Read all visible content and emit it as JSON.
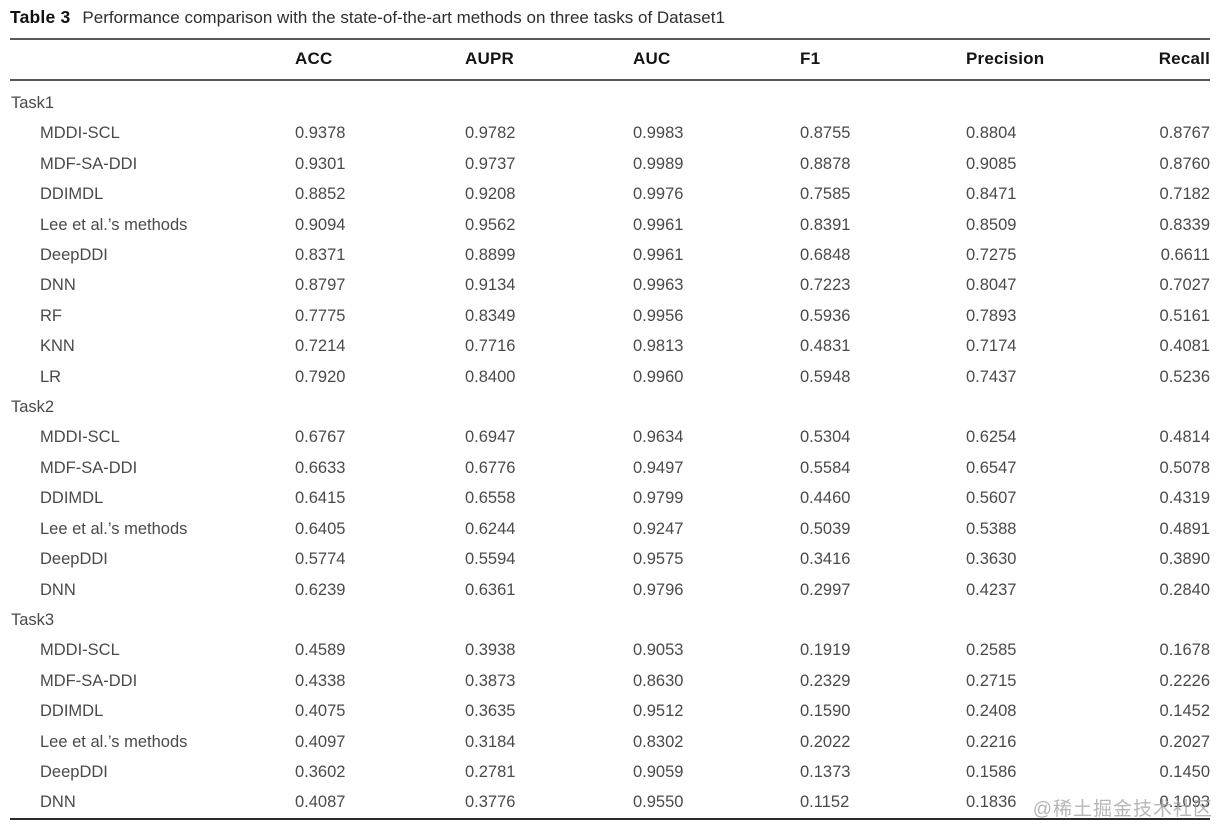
{
  "title": {
    "label": "Table 3",
    "text": "Performance comparison with the state-of-the-art methods on three tasks of Dataset1"
  },
  "watermark": "@稀土掘金技术社区",
  "colors": {
    "rule_top": "#58585a",
    "rule_bottom": "#2b2b2d",
    "header_text": "#141414",
    "body_text": "#4a4a4c",
    "watermark_text": "#a4a4a6"
  },
  "table": {
    "columns": [
      "",
      "ACC",
      "AUPR",
      "AUC",
      "F1",
      "Precision",
      "Recall"
    ],
    "sections": [
      {
        "label": "Task1",
        "rows": [
          {
            "method": "MDDI-SCL",
            "values": [
              "0.9378",
              "0.9782",
              "0.9983",
              "0.8755",
              "0.8804",
              "0.8767"
            ]
          },
          {
            "method": "MDF-SA-DDI",
            "values": [
              "0.9301",
              "0.9737",
              "0.9989",
              "0.8878",
              "0.9085",
              "0.8760"
            ]
          },
          {
            "method": "DDIMDL",
            "values": [
              "0.8852",
              "0.9208",
              "0.9976",
              "0.7585",
              "0.8471",
              "0.7182"
            ]
          },
          {
            "method": "Lee et al.’s methods",
            "values": [
              "0.9094",
              "0.9562",
              "0.9961",
              "0.8391",
              "0.8509",
              "0.8339"
            ]
          },
          {
            "method": "DeepDDI",
            "values": [
              "0.8371",
              "0.8899",
              "0.9961",
              "0.6848",
              "0.7275",
              "0.6611"
            ]
          },
          {
            "method": "DNN",
            "values": [
              "0.8797",
              "0.9134",
              "0.9963",
              "0.7223",
              "0.8047",
              "0.7027"
            ]
          },
          {
            "method": "RF",
            "values": [
              "0.7775",
              "0.8349",
              "0.9956",
              "0.5936",
              "0.7893",
              "0.5161"
            ]
          },
          {
            "method": "KNN",
            "values": [
              "0.7214",
              "0.7716",
              "0.9813",
              "0.4831",
              "0.7174",
              "0.4081"
            ]
          },
          {
            "method": "LR",
            "values": [
              "0.7920",
              "0.8400",
              "0.9960",
              "0.5948",
              "0.7437",
              "0.5236"
            ]
          }
        ]
      },
      {
        "label": "Task2",
        "rows": [
          {
            "method": "MDDI-SCL",
            "values": [
              "0.6767",
              "0.6947",
              "0.9634",
              "0.5304",
              "0.6254",
              "0.4814"
            ]
          },
          {
            "method": "MDF-SA-DDI",
            "values": [
              "0.6633",
              "0.6776",
              "0.9497",
              "0.5584",
              "0.6547",
              "0.5078"
            ]
          },
          {
            "method": "DDIMDL",
            "values": [
              "0.6415",
              "0.6558",
              "0.9799",
              "0.4460",
              "0.5607",
              "0.4319"
            ]
          },
          {
            "method": "Lee et al.’s methods",
            "values": [
              "0.6405",
              "0.6244",
              "0.9247",
              "0.5039",
              "0.5388",
              "0.4891"
            ]
          },
          {
            "method": "DeepDDI",
            "values": [
              "0.5774",
              "0.5594",
              "0.9575",
              "0.3416",
              "0.3630",
              "0.3890"
            ]
          },
          {
            "method": "DNN",
            "values": [
              "0.6239",
              "0.6361",
              "0.9796",
              "0.2997",
              "0.4237",
              "0.2840"
            ]
          }
        ]
      },
      {
        "label": "Task3",
        "rows": [
          {
            "method": "MDDI-SCL",
            "values": [
              "0.4589",
              "0.3938",
              "0.9053",
              "0.1919",
              "0.2585",
              "0.1678"
            ]
          },
          {
            "method": "MDF-SA-DDI",
            "values": [
              "0.4338",
              "0.3873",
              "0.8630",
              "0.2329",
              "0.2715",
              "0.2226"
            ]
          },
          {
            "method": "DDIMDL",
            "values": [
              "0.4075",
              "0.3635",
              "0.9512",
              "0.1590",
              "0.2408",
              "0.1452"
            ]
          },
          {
            "method": "Lee et al.’s methods",
            "values": [
              "0.4097",
              "0.3184",
              "0.8302",
              "0.2022",
              "0.2216",
              "0.2027"
            ]
          },
          {
            "method": "DeepDDI",
            "values": [
              "0.3602",
              "0.2781",
              "0.9059",
              "0.1373",
              "0.1586",
              "0.1450"
            ]
          },
          {
            "method": "DNN",
            "values": [
              "0.4087",
              "0.3776",
              "0.9550",
              "0.1152",
              "0.1836",
              "0.1093"
            ]
          }
        ]
      }
    ]
  }
}
